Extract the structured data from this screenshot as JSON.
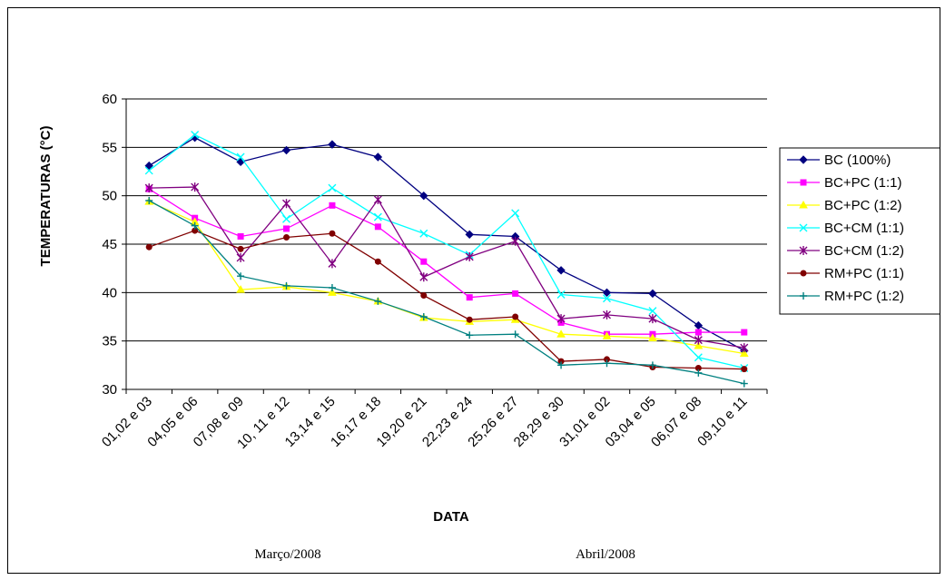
{
  "chart_data": {
    "type": "line",
    "xlabel": "DATA",
    "ylabel": "TEMPERATURAS (°C)",
    "ylim": [
      30,
      60
    ],
    "yticks": [
      30,
      35,
      40,
      45,
      50,
      55,
      60
    ],
    "grid": true,
    "legend_position": "right",
    "categories": [
      "01,02 e 03",
      "04,05 e 06",
      "07,08 e 09",
      "10, 11 e 12",
      "13,14 e 15",
      "16,17 e 18",
      "19,20 e 21",
      "22,23 e 24",
      "25,26 e 27",
      "28,29 e 30",
      "31,01 e 02",
      "03,04 e 05",
      "06,07 e 08",
      "09,10 e 11"
    ],
    "month_labels": [
      "Março/2008",
      "Abril/2008"
    ],
    "series": [
      {
        "name": "BC (100%)",
        "color": "#000080",
        "marker": "diamond",
        "values": [
          53.1,
          56.0,
          53.5,
          54.7,
          55.3,
          54.0,
          50.0,
          46.0,
          45.8,
          42.3,
          40.0,
          39.9,
          36.6,
          34.0
        ]
      },
      {
        "name": "BC+PC (1:1)",
        "color": "#ff00ff",
        "marker": "square",
        "values": [
          50.7,
          47.7,
          45.8,
          46.6,
          49.0,
          46.8,
          43.2,
          39.5,
          39.9,
          36.9,
          35.7,
          35.7,
          35.9,
          35.9
        ]
      },
      {
        "name": "BC+PC (1:2)",
        "color": "#ffff00",
        "marker": "triangle",
        "values": [
          49.4,
          47.3,
          40.3,
          40.6,
          40.0,
          39.1,
          37.4,
          37.0,
          37.2,
          35.7,
          35.5,
          35.3,
          34.5,
          33.7
        ]
      },
      {
        "name": "BC+CM (1:1)",
        "color": "#00ffff",
        "marker": "x",
        "values": [
          52.6,
          56.3,
          54.0,
          47.6,
          50.8,
          47.8,
          46.1,
          43.9,
          48.2,
          39.8,
          39.4,
          38.1,
          33.3,
          32.2
        ]
      },
      {
        "name": "BC+CM (1:2)",
        "color": "#800080",
        "marker": "star",
        "values": [
          50.8,
          50.9,
          43.6,
          49.2,
          43.0,
          49.6,
          41.6,
          43.7,
          45.3,
          37.3,
          37.7,
          37.3,
          35.1,
          34.3
        ]
      },
      {
        "name": "RM+PC (1:1)",
        "color": "#800000",
        "marker": "circle",
        "values": [
          44.7,
          46.4,
          44.5,
          45.7,
          46.1,
          43.2,
          39.7,
          37.2,
          37.5,
          32.9,
          33.1,
          32.3,
          32.2,
          32.1
        ]
      },
      {
        "name": "RM+PC (1:2)",
        "color": "#008080",
        "marker": "plus",
        "values": [
          49.5,
          46.9,
          41.7,
          40.7,
          40.5,
          39.1,
          37.5,
          35.6,
          35.7,
          32.5,
          32.7,
          32.5,
          31.7,
          30.6
        ]
      }
    ]
  }
}
